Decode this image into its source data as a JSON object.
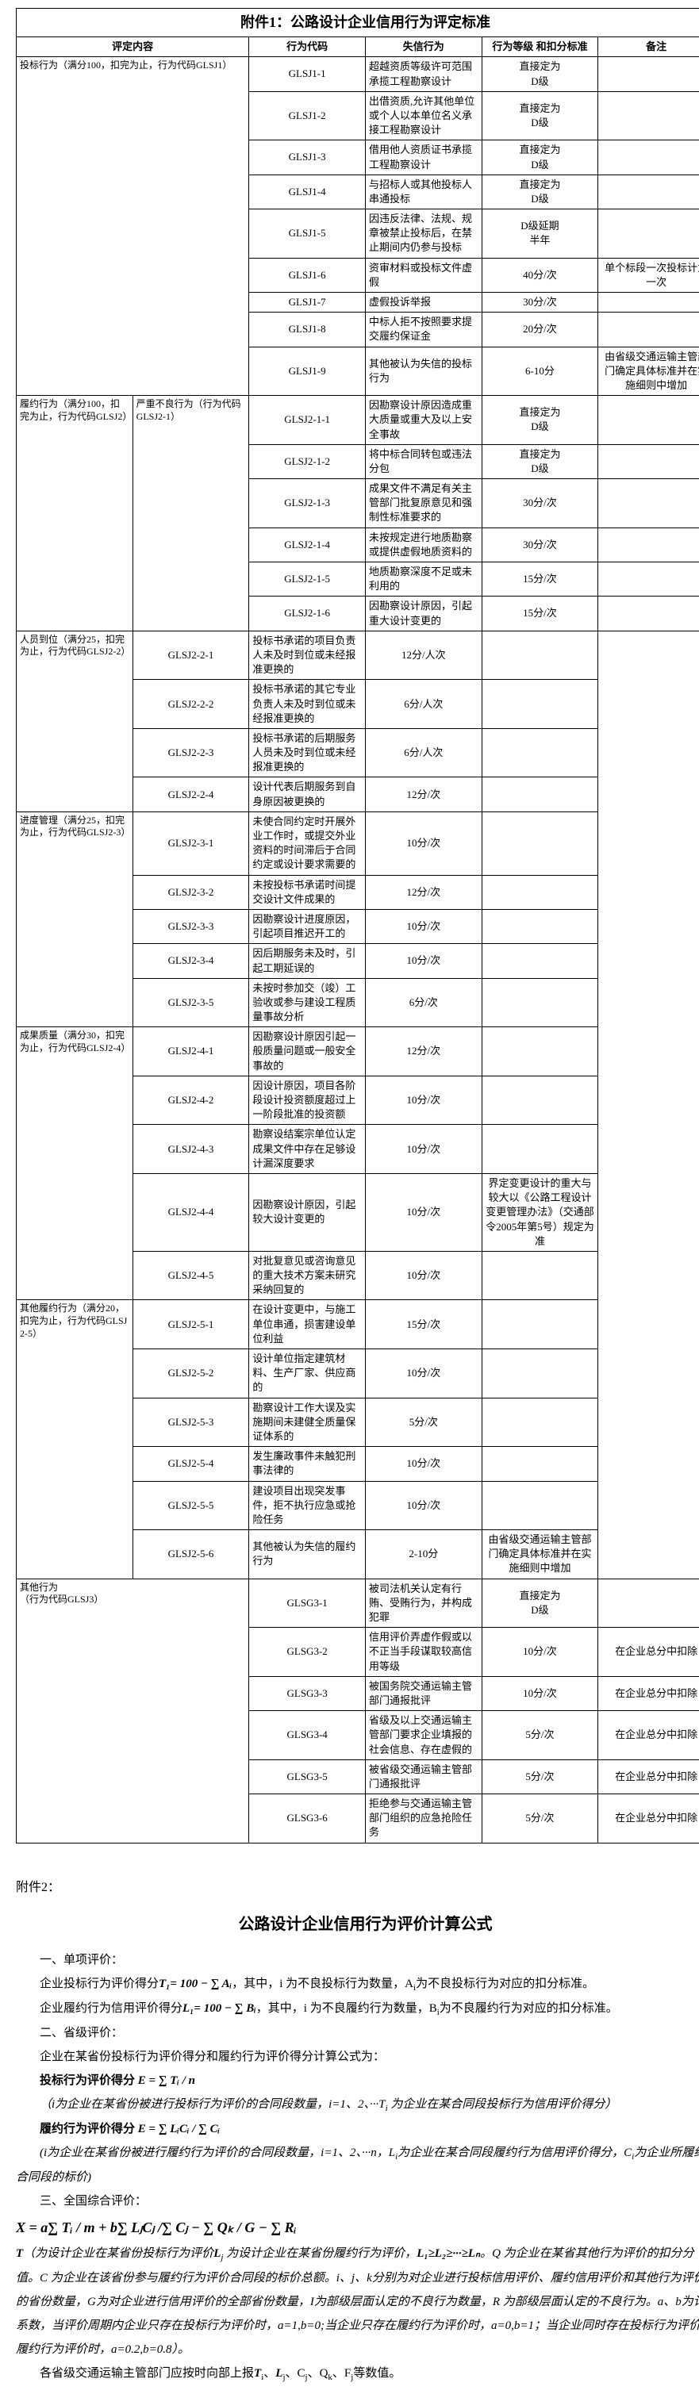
{
  "title": "附件1：公路设计企业信用行为评定标准",
  "col_head": [
    "评定内容",
    "行为代码",
    "失信行为",
    "行为等级\n和扣分标准",
    "备注"
  ],
  "g1_label": "投标行为（满分100，扣完为止，行为代码GLSJ1）",
  "g1": [
    {
      "code": "GLSJ1-1",
      "beh": "超越资质等级许可范围承揽工程勘察设计",
      "ded": "直接定为\nD级",
      "rem": ""
    },
    {
      "code": "GLSJ1-2",
      "beh": "出借资质,允许其他单位或个人以本单位名义承接工程勘察设计",
      "ded": "直接定为\nD级",
      "rem": ""
    },
    {
      "code": "GLSJ1-3",
      "beh": "借用他人资质证书承揽工程勘察设计",
      "ded": "直接定为\nD级",
      "rem": ""
    },
    {
      "code": "GLSJ1-4",
      "beh": "与招标人或其他投标人串通投标",
      "ded": "直接定为\nD级",
      "rem": ""
    },
    {
      "code": "GLSJ1-5",
      "beh": "因违反法律、法规、规章被禁止投标后，在禁止期间内仍参与投标",
      "ded": "D级延期\n半年",
      "rem": ""
    },
    {
      "code": "GLSJ1-6",
      "beh": "资审材料或投标文件虚假",
      "ded": "40分/次",
      "rem": "单个标段一次投标计为一次"
    },
    {
      "code": "GLSJ1-7",
      "beh": "虚假投诉举报",
      "ded": "30分/次",
      "rem": ""
    },
    {
      "code": "GLSJ1-8",
      "beh": "中标人拒不按照要求提交履约保证金",
      "ded": "20分/次",
      "rem": ""
    },
    {
      "code": "GLSJ1-9",
      "beh": "其他被认为失信的投标行为",
      "ded": "6-10分",
      "rem": "由省级交通运输主管部门确定具体标准并在实施细则中增加"
    }
  ],
  "g2_outer": "履约行为（满分100，扣完为止，行为代码GLSJ2）",
  "g2a_label": "严重不良行为（行为代码GLSJ2-1）",
  "g2a": [
    {
      "code": "GLSJ2-1-1",
      "beh": "因勘察设计原因造成重大质量或重大及以上安全事故",
      "ded": "直接定为\nD级",
      "rem": ""
    },
    {
      "code": "GLSJ2-1-2",
      "beh": "将中标合同转包或违法分包",
      "ded": "直接定为\nD级",
      "rem": ""
    },
    {
      "code": "GLSJ2-1-3",
      "beh": "成果文件不满足有关主管部门批复原意见和强制性标准要求的",
      "ded": "30分/次",
      "rem": ""
    },
    {
      "code": "GLSJ2-1-4",
      "beh": "未按规定进行地质勘察或提供虚假地质资料的",
      "ded": "30分/次",
      "rem": ""
    },
    {
      "code": "GLSJ2-1-5",
      "beh": "地质勘察深度不足或未利用的",
      "ded": "15分/次",
      "rem": ""
    },
    {
      "code": "GLSJ2-1-6",
      "beh": "因勘察设计原因，引起重大设计变更的",
      "ded": "15分/次",
      "rem": ""
    }
  ],
  "g2b_label": "人员到位（满分25，扣完为止，行为代码GLSJ2-2）",
  "g2b": [
    {
      "code": "GLSJ2-2-1",
      "beh": "投标书承诺的项目负责人未及时到位或未经报准更换的",
      "ded": "12分/人次",
      "rem": ""
    },
    {
      "code": "GLSJ2-2-2",
      "beh": "投标书承诺的其它专业负责人未及时到位或未经报准更换的",
      "ded": "6分/人次",
      "rem": ""
    },
    {
      "code": "GLSJ2-2-3",
      "beh": "投标书承诺的后期服务人员未及时到位或未经报准更换的",
      "ded": "6分/人次",
      "rem": ""
    },
    {
      "code": "GLSJ2-2-4",
      "beh": "设计代表后期服务到自身原因被更换的",
      "ded": "12分/次",
      "rem": ""
    }
  ],
  "g2c_label": "进度管理（满分25，扣完为止，行为代码GLSJ2-3）",
  "g2c": [
    {
      "code": "GLSJ2-3-1",
      "beh": "未使合同约定时开展外业工作时，或提交外业资料的时间滞后于合同约定或设计要求需要的",
      "ded": "10分/次",
      "rem": ""
    },
    {
      "code": "GLSJ2-3-2",
      "beh": "未按投标书承诺时间提交设计文件成果的",
      "ded": "12分/次",
      "rem": ""
    },
    {
      "code": "GLSJ2-3-3",
      "beh": "因勘察设计进度原因，引起项目推迟开工的",
      "ded": "10分/次",
      "rem": ""
    },
    {
      "code": "GLSJ2-3-4",
      "beh": "因后期服务未及时，引起工期延误的",
      "ded": "10分/次",
      "rem": ""
    },
    {
      "code": "GLSJ2-3-5",
      "beh": "未按时参加交（竣）工验收或参与建设工程质量事故分析",
      "ded": "6分/次",
      "rem": ""
    }
  ],
  "g2d_label": "成果质量（满分30，扣完为止，行为代码GLSJ2-4）",
  "g2d": [
    {
      "code": "GLSJ2-4-1",
      "beh": "因勘察设计原因引起一般质量问题或一般安全事故的",
      "ded": "12分/次",
      "rem": ""
    },
    {
      "code": "GLSJ2-4-2",
      "beh": "因设计原因，项目各阶段设计投资额度超过上一阶段批准的投资额",
      "ded": "10分/次",
      "rem": ""
    },
    {
      "code": "GLSJ2-4-3",
      "beh": "勘察设结案宗单位认定成果文件中存在足够设计漏深度要求",
      "ded": "10分/次",
      "rem": ""
    },
    {
      "code": "GLSJ2-4-4",
      "beh": "因勘察设计原因，引起较大设计变更的",
      "ded": "10分/次",
      "rem": "界定变更设计的重大与较大以《公路工程设计变更管理办法》（交通部令2005年第5号）规定为准"
    },
    {
      "code": "GLSJ2-4-5",
      "beh": "对批复意见或咨询意见的重大技术方案未研究采纳回复的",
      "ded": "10分/次",
      "rem": ""
    }
  ],
  "g2e_label": "其他履约行为（满分20，扣完为止，行为代码GLSJ2-5）",
  "g2e": [
    {
      "code": "GLSJ2-5-1",
      "beh": "在设计变更中，与施工单位串通，损害建设单位利益",
      "ded": "15分/次",
      "rem": ""
    },
    {
      "code": "GLSJ2-5-2",
      "beh": "设计单位指定建筑材料、生产厂家、供应商的",
      "ded": "10分/次",
      "rem": ""
    },
    {
      "code": "GLSJ2-5-3",
      "beh": "勘察设计工作大误及实施期间未建健全质量保证体系的",
      "ded": "5分/次",
      "rem": ""
    },
    {
      "code": "GLSJ2-5-4",
      "beh": "发生廉政事件未触犯刑事法律的",
      "ded": "10分/次",
      "rem": ""
    },
    {
      "code": "GLSJ2-5-5",
      "beh": "建设项目出现突发事件，拒不执行应急或抢险任务",
      "ded": "10分/次",
      "rem": ""
    },
    {
      "code": "GLSJ2-5-6",
      "beh": "其他被认为失信的履约行为",
      "ded": "2-10分",
      "rem": "由省级交通运输主管部门确定具体标准并在实施细则中增加"
    }
  ],
  "g3_label": "其他行为\n（行为代码GLSJ3）",
  "g3": [
    {
      "code": "GLSG3-1",
      "beh": "被司法机关认定有行贿、受贿行为，并构成犯罪",
      "ded": "直接定为\nD级",
      "rem": ""
    },
    {
      "code": "GLSG3-2",
      "beh": "信用评价弄虚作假或以不正当手段谋取较高信用等级",
      "ded": "10分/次",
      "rem": "在企业总分中扣除"
    },
    {
      "code": "GLSG3-3",
      "beh": "被国务院交通运输主管部门通报批评",
      "ded": "10分/次",
      "rem": "在企业总分中扣除"
    },
    {
      "code": "GLSG3-4",
      "beh": "省级及以上交通运输主管部门要求企业填报的社会信息、存在虚假的",
      "ded": "5分/次",
      "rem": "在企业总分中扣除"
    },
    {
      "code": "GLSG3-5",
      "beh": "被省级交通运输主管部门通报批评",
      "ded": "5分/次",
      "rem": "在企业总分中扣除"
    },
    {
      "code": "GLSG3-6",
      "beh": "拒绝参与交通运输主管部门组织的应急抢险任务",
      "ded": "5分/次",
      "rem": "在企业总分中扣除"
    }
  ],
  "a2": {
    "hdr": "附件2：",
    "title": "公路设计企业信用行为评价计算公式",
    "s1": "一、单项评价：",
    "p1a": "企业投标行为评价得分",
    "p1b": "，其中，i 为不良投标行为数量，A",
    "p1sub": "i",
    "p1c": "为不良投标行为对应的扣分标准。",
    "p2a": "企业履约行为信用评价得分",
    "p2b": "，其中，i 为不良履约行为数量，B",
    "p2sub": "i",
    "p2c": "为不良履约行为对应的扣分标准。",
    "s2": "二、省级评价：",
    "p3": "企业在某省份投标行为评价得分和履约行为评价得分计算公式为：",
    "f1": "投标行为评价得分",
    "f1i": "（i为企业在某省份被进行投标行为评价的合同段数量，i=1、2、···",
    "f1i2": "T",
    "f1i3": "为企业在某合同段投标行为信用评价得分）",
    "f2": "履约行为评价得分",
    "f2i": "(i为企业在某省份被进行履约行为评价的合同段数量，i=1、2、···n，L",
    "f2i2": "i",
    "f2i3": "为企业在某合同段履约行为信用评价得分，C",
    "f2i4": "i",
    "f2i5": "为企业所履约合同段的标价)",
    "s3": "三、全国综合评价：",
    "fx": "X = a",
    "px": "（为设计企业在某省份投标行为评价",
    "px2": "为设计企业在某省份履约行为评价，",
    "px3": "。Q 为企业在某省其他行为评价的扣分分值。C 为企业在该省份参与履约行为评价合同段的标价总额。i、j、k分别为对企业进行投标信用评价、履约信用评价和其他行为评价的省份数量，G为对企业进行信用评价的全部省份数量，I为部级层面认定的不良行为数量，R 为部级层面认定的不良行为。a、b为计系数，当评价周期内企业只存在投标行为评价时，a=1,b=0;当企业只存在履约行为评价时，a=0,b=1；当企业同时存在投标行为评价和履约行为评价时，a=0.2,b=0.8）。",
    "pend": "各省级交通运输主管部门应按时向部上报",
    "pend2": "、C",
    "pend3": "、Q",
    "pend4": "、F",
    "pend5": "等数值。",
    "formula_t": "T₁= 100 − ∑ Aᵢ",
    "formula_l": "L₁= 100 − ∑ Bᵢ",
    "formula_e": "E = ∑ Tᵢ / n",
    "formula_e2": "E = ∑ LᵢCᵢ / ∑ Cᵢ",
    "formula_x": "∑ Tᵢ / m + b∑ LⱼCⱼ /∑ Cⱼ − ∑ Qₖ / G − ∑ Rᵢ",
    "tl": "T",
    "ll": "L",
    "ei": "E",
    "lgt": "L₁≥L₂≥···≥Lₙ"
  }
}
